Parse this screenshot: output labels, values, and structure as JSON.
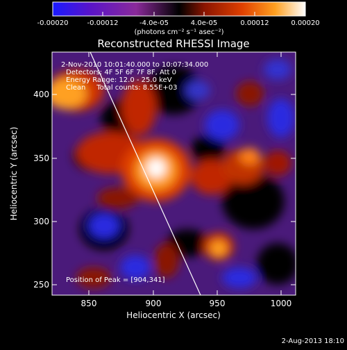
{
  "colorbar": {
    "tick_labels": [
      "-0.00020",
      "-0.00012",
      "-4.0e-05",
      "4.0e-05",
      "0.00012",
      "0.00020"
    ],
    "units_label": "(photons cm⁻² s⁻¹ asec⁻²)",
    "range": [
      -0.0002,
      0.0002
    ],
    "colors": [
      "#1a1aff",
      "#5a14c8",
      "#8a2a9a",
      "#000000",
      "#8a1400",
      "#e04000",
      "#ffa020",
      "#ffffff"
    ]
  },
  "plot": {
    "title": "Reconstructed RHESSI Image",
    "xlabel": "Heliocentric X (arcsec)",
    "ylabel": "Heliocentric Y (arcsec)",
    "xticks": [
      "850",
      "900",
      "950",
      "1000"
    ],
    "yticks": [
      "250",
      "300",
      "350",
      "400"
    ],
    "xlim": [
      818,
      1010
    ],
    "ylim": [
      238,
      432
    ],
    "info_lines": [
      "2-Nov-2010 10:01:40.000 to 10:07:34.000",
      "Detectors: 4F 5F 6F 7F 8F, Att 0",
      "Energy Range: 12.0 - 25.0 keV",
      "Clean     Total counts: 8.55E+03"
    ],
    "peak_label": "Position of Peak = [904,341]",
    "peak": [
      904,
      341
    ],
    "limb_line": [
      [
        864,
        432
      ],
      [
        936,
        238
      ]
    ]
  },
  "footer": {
    "timestamp": "2-Aug-2013 18:10"
  }
}
